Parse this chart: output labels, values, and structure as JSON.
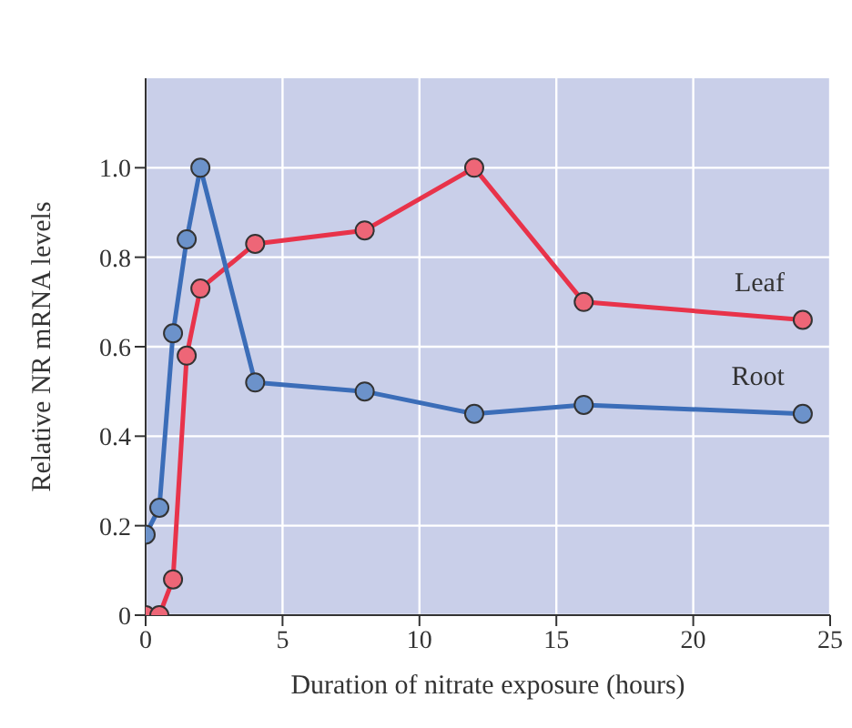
{
  "chart_data": {
    "type": "line",
    "xlabel": "Duration of nitrate exposure (hours)",
    "ylabel": "Relative NR mRNA levels",
    "series": [
      {
        "name": "Leaf",
        "color": "#e8334a",
        "x": [
          0,
          0.5,
          1,
          1.5,
          2,
          4,
          8,
          12,
          16,
          24
        ],
        "values": [
          0,
          0,
          0.08,
          0.58,
          0.73,
          0.83,
          0.86,
          1.0,
          0.7,
          0.66
        ]
      },
      {
        "name": "Root",
        "color": "#3b6db8",
        "x": [
          0,
          0.5,
          1,
          1.5,
          2,
          4,
          8,
          12,
          16,
          24
        ],
        "values": [
          0.18,
          0.24,
          0.63,
          0.84,
          1.0,
          0.52,
          0.5,
          0.45,
          0.47,
          0.45
        ]
      }
    ],
    "xlim": [
      0,
      25
    ],
    "xticks": [
      0,
      5,
      10,
      15,
      20,
      25
    ],
    "ylim": [
      0,
      1.2
    ],
    "yticks": [
      0,
      {
        "value": 0.2,
        "label": "0.2"
      },
      {
        "value": 0.4,
        "label": "0.4"
      },
      {
        "value": 0.6,
        "label": "0.6"
      },
      {
        "value": 0.8,
        "label": "0.8"
      },
      {
        "value": 1,
        "label": "1.0"
      }
    ],
    "grid": true,
    "marker": "circle",
    "line_style": "solid"
  }
}
